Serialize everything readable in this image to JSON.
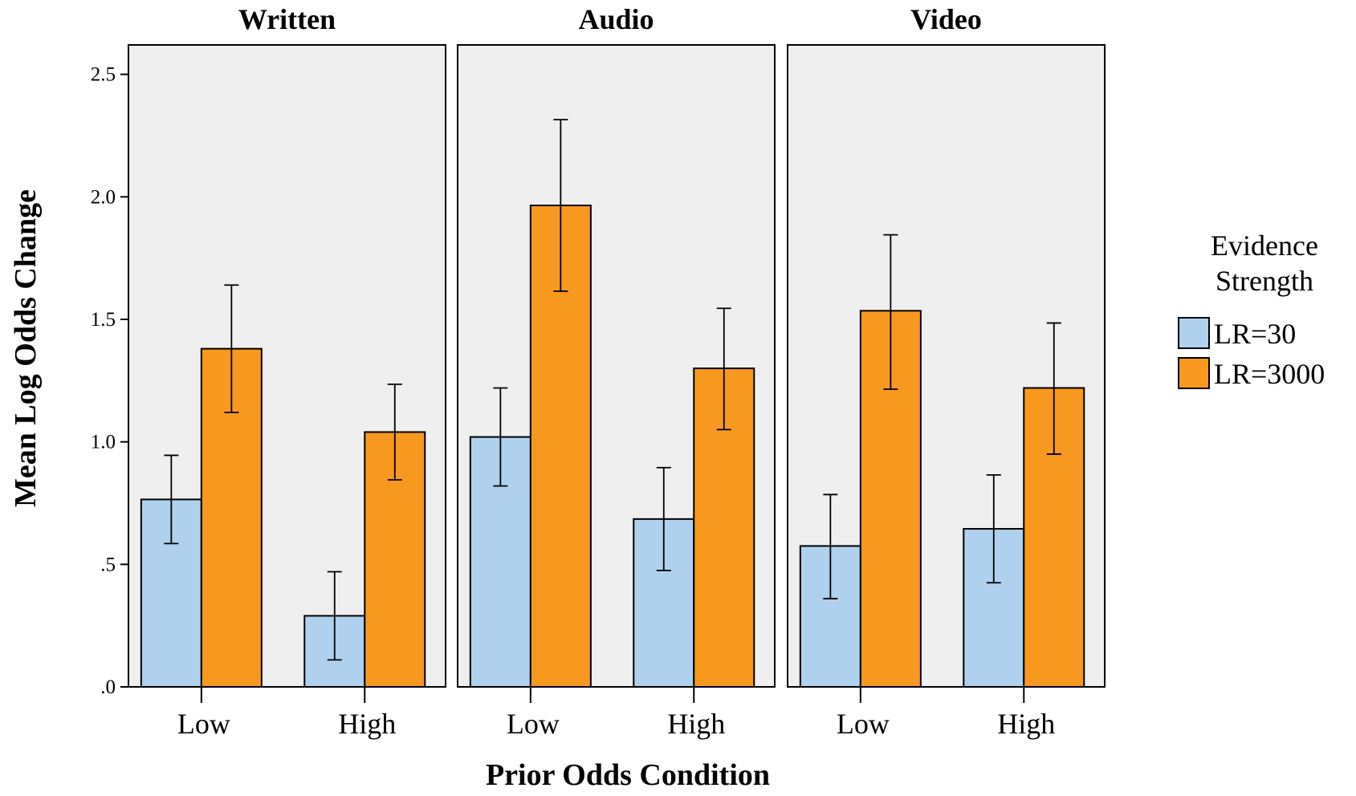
{
  "chart_data": {
    "type": "bar",
    "xlabel": "Prior Odds Condition",
    "ylabel": "Mean Log Odds Change",
    "ylim": [
      0,
      2.62
    ],
    "yticks": [
      {
        "value": 0,
        "label": ".0"
      },
      {
        "value": 0.5,
        "label": ".5"
      },
      {
        "value": 1.0,
        "label": "1.0"
      },
      {
        "value": 1.5,
        "label": "1.5"
      },
      {
        "value": 2.0,
        "label": "2.0"
      },
      {
        "value": 2.5,
        "label": "2.5"
      }
    ],
    "categories": [
      "Low",
      "High"
    ],
    "legend": {
      "title_line1": "Evidence",
      "title_line2": "Strength",
      "placement": "right",
      "entries": [
        {
          "name": "LR=30",
          "color": "#afd1ee"
        },
        {
          "name": "LR=3000",
          "color": "#f7991f"
        }
      ]
    },
    "panels": [
      {
        "title": "Written",
        "series": [
          {
            "name": "LR=30",
            "values": [
              0.765,
              0.29
            ],
            "err_low": [
              0.585,
              0.11
            ],
            "err_high": [
              0.945,
              0.47
            ]
          },
          {
            "name": "LR=3000",
            "values": [
              1.38,
              1.04
            ],
            "err_low": [
              1.12,
              0.845
            ],
            "err_high": [
              1.64,
              1.235
            ]
          }
        ]
      },
      {
        "title": "Audio",
        "series": [
          {
            "name": "LR=30",
            "values": [
              1.02,
              0.685
            ],
            "err_low": [
              0.82,
              0.475
            ],
            "err_high": [
              1.22,
              0.895
            ]
          },
          {
            "name": "LR=3000",
            "values": [
              1.965,
              1.3
            ],
            "err_low": [
              1.615,
              1.05
            ],
            "err_high": [
              2.315,
              1.545
            ]
          }
        ]
      },
      {
        "title": "Video",
        "series": [
          {
            "name": "LR=30",
            "values": [
              0.575,
              0.645
            ],
            "err_low": [
              0.36,
              0.425
            ],
            "err_high": [
              0.785,
              0.865
            ]
          },
          {
            "name": "LR=3000",
            "values": [
              1.535,
              1.22
            ],
            "err_low": [
              1.215,
              0.95
            ],
            "err_high": [
              1.845,
              1.485
            ]
          }
        ]
      }
    ]
  }
}
